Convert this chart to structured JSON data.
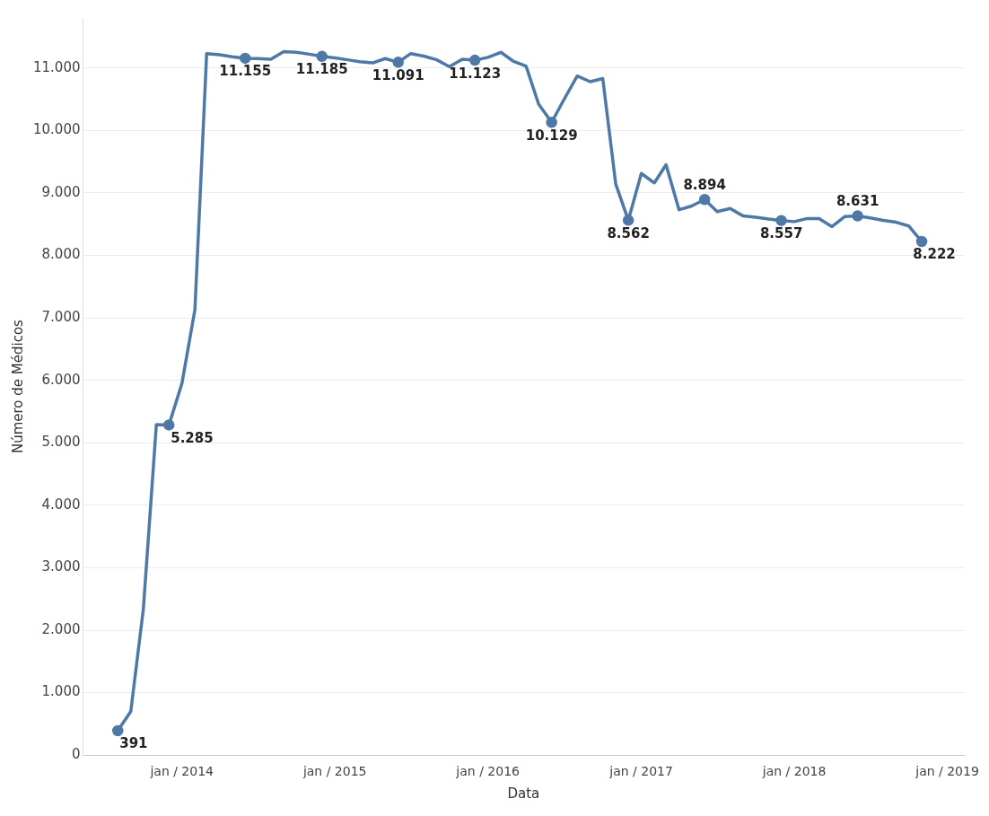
{
  "chart_data": {
    "type": "line",
    "xlabel": "Data",
    "ylabel": "Número de Médicos",
    "x": [
      "2013-08",
      "2013-09",
      "2013-10",
      "2013-11",
      "2013-12",
      "2014-01",
      "2014-02",
      "2014-03",
      "2014-04",
      "2014-05",
      "2014-06",
      "2014-07",
      "2014-08",
      "2014-09",
      "2014-10",
      "2014-11",
      "2014-12",
      "2015-01",
      "2015-02",
      "2015-03",
      "2015-04",
      "2015-05",
      "2015-06",
      "2015-07",
      "2015-08",
      "2015-09",
      "2015-10",
      "2015-11",
      "2015-12",
      "2016-01",
      "2016-02",
      "2016-03",
      "2016-04",
      "2016-05",
      "2016-06",
      "2016-07",
      "2016-08",
      "2016-09",
      "2016-10",
      "2016-11",
      "2016-12",
      "2017-01",
      "2017-02",
      "2017-03",
      "2017-04",
      "2017-05",
      "2017-06",
      "2017-07",
      "2017-08",
      "2017-09",
      "2017-10",
      "2017-11",
      "2017-12",
      "2018-01",
      "2018-02",
      "2018-03",
      "2018-04",
      "2018-05",
      "2018-06",
      "2018-07",
      "2018-08",
      "2018-09",
      "2018-10",
      "2018-11"
    ],
    "series": [
      {
        "color": "#4e79a7",
        "values": [
          391,
          700,
          2340,
          5290,
          5285,
          5950,
          7130,
          11230,
          11210,
          11180,
          11155,
          11150,
          11140,
          11260,
          11250,
          11220,
          11185,
          11160,
          11130,
          11100,
          11080,
          11150,
          11091,
          11230,
          11190,
          11130,
          11020,
          11140,
          11123,
          11170,
          11250,
          11110,
          11030,
          10420,
          10129,
          10500,
          10870,
          10780,
          10830,
          9140,
          8562,
          9310,
          9160,
          9450,
          8730,
          8790,
          8894,
          8700,
          8750,
          8630,
          8610,
          8580,
          8557,
          8540,
          8590,
          8590,
          8460,
          8620,
          8631,
          8600,
          8560,
          8530,
          8470,
          8222
        ],
        "value_labels": [
          "391",
          null,
          null,
          null,
          "5.285",
          null,
          null,
          null,
          null,
          null,
          "11.155",
          null,
          null,
          null,
          null,
          null,
          "11.185",
          null,
          null,
          null,
          null,
          null,
          "11.091",
          null,
          null,
          null,
          null,
          null,
          "11.123",
          null,
          null,
          null,
          null,
          null,
          "10.129",
          null,
          null,
          null,
          null,
          null,
          "8.562",
          null,
          null,
          null,
          null,
          null,
          "8.894",
          null,
          null,
          null,
          null,
          null,
          "8.557",
          null,
          null,
          null,
          null,
          null,
          "8.631",
          null,
          null,
          null,
          null,
          "8.222"
        ]
      }
    ],
    "xlim": [
      "2013-05-10",
      "2019-02-10"
    ],
    "xticks": [
      {
        "value": "2014-01",
        "label": "jan / 2014"
      },
      {
        "value": "2015-01",
        "label": "jan / 2015"
      },
      {
        "value": "2016-01",
        "label": "jan / 2016"
      },
      {
        "value": "2017-01",
        "label": "jan / 2017"
      },
      {
        "value": "2018-01",
        "label": "jan / 2018"
      },
      {
        "value": "2019-01",
        "label": "jan / 2019"
      }
    ],
    "ylim": [
      0,
      11800
    ],
    "yticks": [
      {
        "value": 0,
        "label": "0"
      },
      {
        "value": 1000,
        "label": "1.000"
      },
      {
        "value": 2000,
        "label": "2.000"
      },
      {
        "value": 3000,
        "label": "3.000"
      },
      {
        "value": 4000,
        "label": "4.000"
      },
      {
        "value": 5000,
        "label": "5.000"
      },
      {
        "value": 6000,
        "label": "6.000"
      },
      {
        "value": 7000,
        "label": "7.000"
      },
      {
        "value": 8000,
        "label": "8.000"
      },
      {
        "value": 9000,
        "label": "9.000"
      },
      {
        "value": 10000,
        "label": "10.000"
      },
      {
        "value": 11000,
        "label": "11.000"
      }
    ],
    "grid": "y",
    "legend": false,
    "line_style": "solid"
  }
}
